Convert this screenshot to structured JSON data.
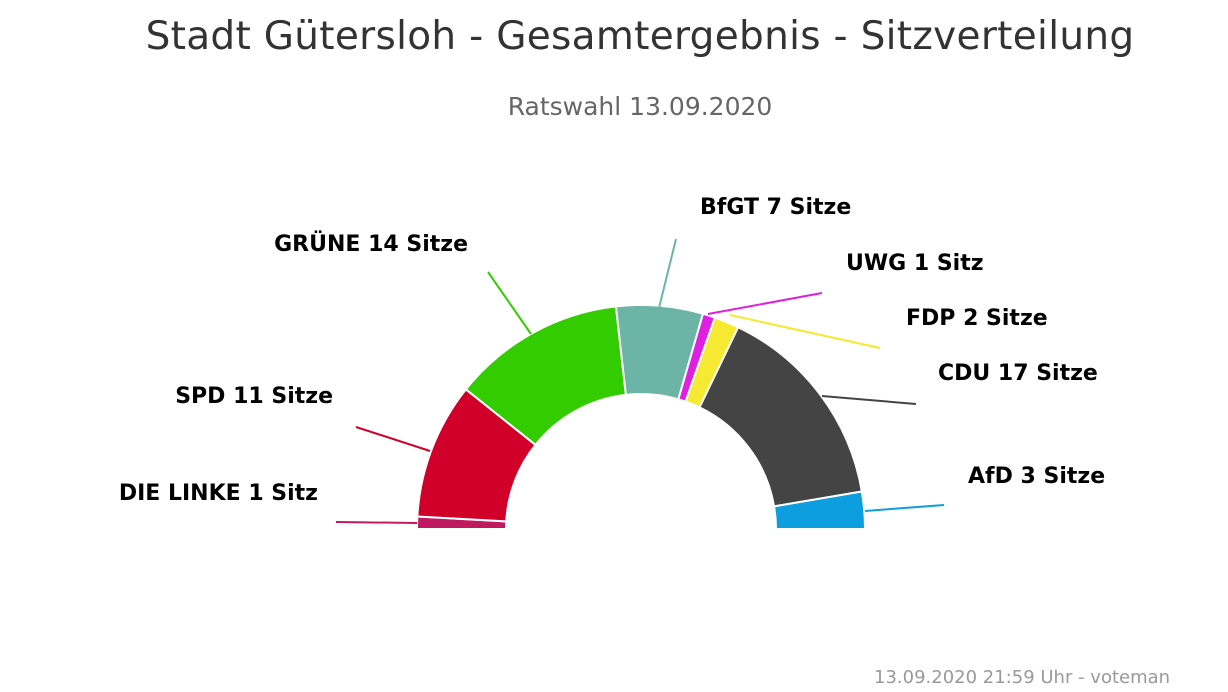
{
  "chart_data": {
    "type": "pie",
    "variant": "semi-circle (parliament seat distribution)",
    "title": "Stadt Gütersloh - Gesamtergebnis - Sitzverteilung",
    "subtitle": "Ratswahl 13.09.2020",
    "unit_plural": "Sitze",
    "unit_singular": "Sitz",
    "slices": [
      {
        "name": "DIE LINKE",
        "value": 1,
        "label": "DIE LINKE 1 Sitz",
        "color": "#bf1a60"
      },
      {
        "name": "SPD",
        "value": 11,
        "label": "SPD 11 Sitze",
        "color": "#d0002a"
      },
      {
        "name": "GRÜNE",
        "value": 14,
        "label": "GRÜNE 14 Sitze",
        "color": "#33cc00"
      },
      {
        "name": "BfGT",
        "value": 7,
        "label": "BfGT 7 Sitze",
        "color": "#6cb5a6"
      },
      {
        "name": "UWG",
        "value": 1,
        "label": "UWG 1 Sitz",
        "color": "#e020e0"
      },
      {
        "name": "FDP",
        "value": 2,
        "label": "FDP 2 Sitze",
        "color": "#f5e931"
      },
      {
        "name": "CDU",
        "value": 17,
        "label": "CDU 17 Sitze",
        "color": "#444444"
      },
      {
        "name": "AfD",
        "value": 3,
        "label": "AfD 3 Sitze",
        "color": "#0d9ee0"
      }
    ],
    "total_seats": 56,
    "legend": "none",
    "data_labels": "outside with connector lines"
  },
  "credits": "13.09.2020 21:59 Uhr - voteman"
}
